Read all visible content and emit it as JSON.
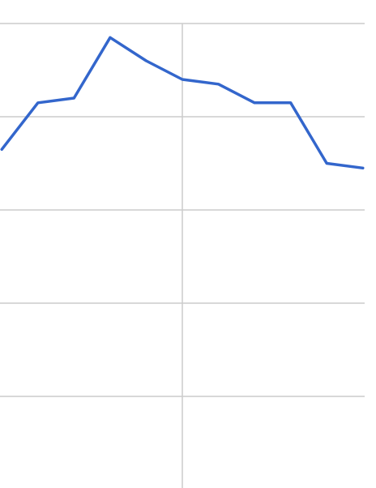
{
  "chart_data": {
    "type": "line",
    "title": "",
    "xlabel": "",
    "ylabel": "",
    "grid": true,
    "x": [
      0,
      1,
      2,
      3,
      4,
      5,
      6,
      7,
      8,
      9,
      10
    ],
    "series": [
      {
        "color": "#3366cc",
        "values": [
          0.73,
          0.83,
          0.84,
          0.97,
          0.92,
          0.88,
          0.87,
          0.83,
          0.83,
          0.7,
          0.69
        ]
      }
    ],
    "xlim": [
      -0.05,
      10.05
    ],
    "ylim": [
      0.0,
      1.0
    ],
    "gridline_color": "#cccccc",
    "horizontal_gridlines": [
      0.2,
      0.4,
      0.6,
      0.8,
      1.0
    ],
    "vertical_gridlines": [
      5
    ]
  }
}
